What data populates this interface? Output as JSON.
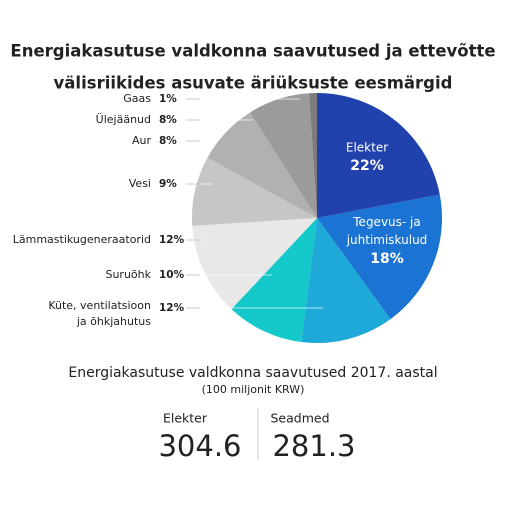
{
  "chart_data": {
    "type": "pie",
    "title": [
      "Energiakasutuse valdkonna saavutused ja ettevõtte",
      "välisriikides asuvate äriüksuste eesmärgid"
    ],
    "categories": [
      "Elekter",
      "Tegevus- ja\njuhtimiskulud",
      "Küte, ventilatsioon\nja õhkjahutus",
      "Suruõhk",
      "Lämmastikugeneraatorid",
      "Vesi",
      "Aur",
      "Ülejäänud",
      "Gaas"
    ],
    "values": [
      22,
      18,
      12,
      10,
      12,
      9,
      8,
      8,
      1
    ],
    "value_labels": [
      "22%",
      "18%",
      "12%",
      "10%",
      "12%",
      "9%",
      "8%",
      "8%",
      "1%"
    ],
    "colors": [
      "#2141ad",
      "#1b73d3",
      "#1ea9d8",
      "#15c8c9",
      "#e8e8e8",
      "#c6c6c6",
      "#b1b1b1",
      "#9b9b9b",
      "#7c7c7c"
    ]
  },
  "summary": {
    "title": "Energiakasutuse valdkonna saavutused 2017. aastal",
    "subtitle": "(100 miljonit KRW)",
    "items": [
      {
        "label": "Elekter",
        "value": "304.6"
      },
      {
        "label": "Seadmed",
        "value": "281.3"
      }
    ]
  }
}
